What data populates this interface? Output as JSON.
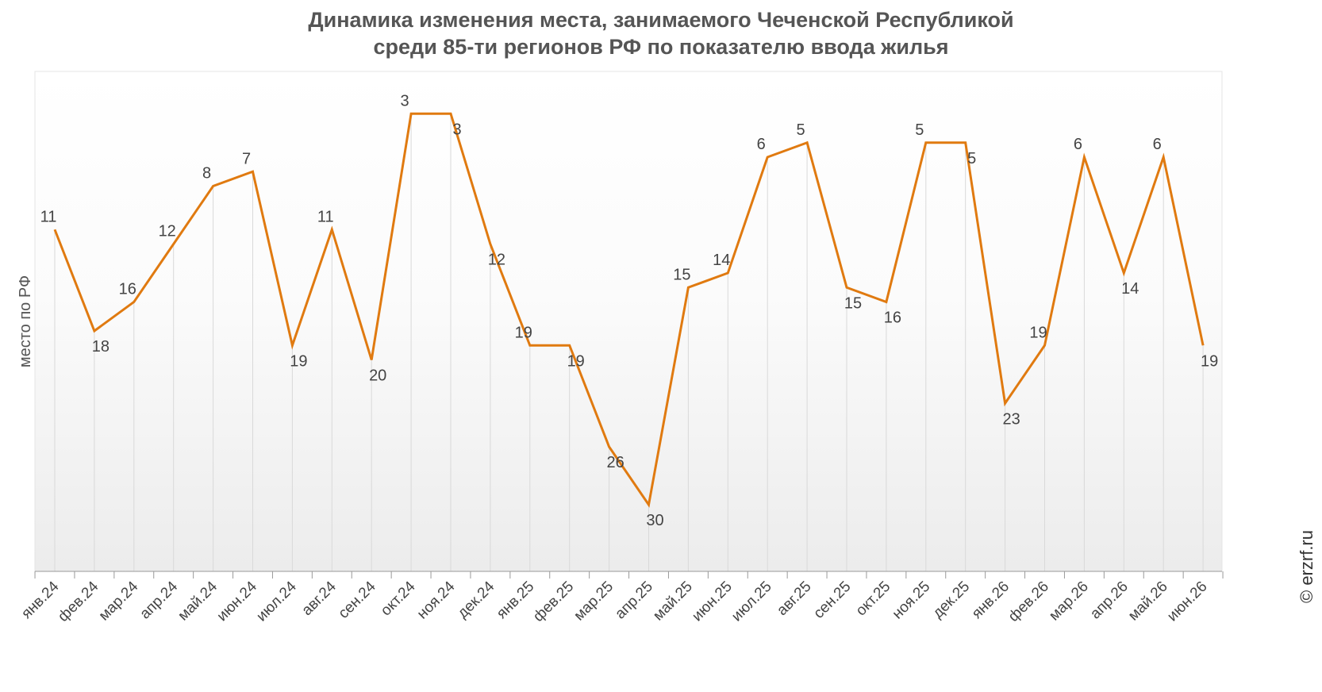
{
  "title_lines": [
    "Динамика изменения места, занимаемого Чеченской Республикой",
    "среди 85-ти регионов РФ по показателю ввода жилья"
  ],
  "watermark": "© erzrf.ru",
  "colors": {
    "line": "#e07a10",
    "text": "#444444",
    "grid": "#d9d9d9",
    "axis": "#999999"
  },
  "chart_data": {
    "type": "line",
    "title": "Динамика изменения места, занимаемого Чеченской Республикой среди 85-ти регионов РФ по показателю ввода жилья",
    "ylabel": "место по РФ",
    "xlabel": "",
    "y_inverted": true,
    "grid": "vertical",
    "categories": [
      "янв.24",
      "фев.24",
      "мар.24",
      "апр.24",
      "май.24",
      "июн.24",
      "июл.24",
      "авг.24",
      "сен.24",
      "окт.24",
      "ноя.24",
      "дек.24",
      "янв.25",
      "фев.25",
      "мар.25",
      "апр.25",
      "май.25",
      "июн.25",
      "июл.25",
      "авг.25",
      "сен.25",
      "окт.25",
      "ноя.25",
      "дек.25",
      "янв.26",
      "фев.26",
      "мар.26",
      "апр.26",
      "май.26",
      "июн.26"
    ],
    "series": [
      {
        "values": [
          11,
          18,
          16,
          12,
          8,
          7,
          19,
          11,
          20,
          3,
          3,
          12,
          19,
          19,
          26,
          30,
          15,
          14,
          6,
          5,
          15,
          16,
          5,
          5,
          23,
          19,
          6,
          14,
          6,
          19
        ]
      }
    ]
  }
}
